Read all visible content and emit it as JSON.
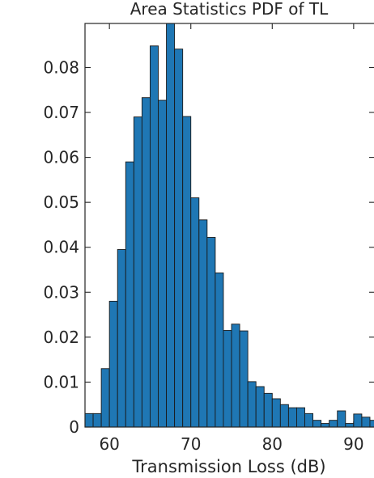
{
  "chart_data": {
    "type": "bar",
    "title": "Area Statistics PDF of TL",
    "xlabel": "Transmission Loss (dB)",
    "ylabel": "",
    "xlim": [
      57,
      92.6
    ],
    "ylim": [
      0,
      0.0898
    ],
    "bin_width": 1,
    "x_ticks": [
      60,
      70,
      80,
      90
    ],
    "x_tick_labels": [
      "60",
      "70",
      "80",
      "90"
    ],
    "y_ticks": [
      0,
      0.01,
      0.02,
      0.03,
      0.04,
      0.05,
      0.06,
      0.07,
      0.08
    ],
    "y_tick_labels": [
      "0",
      "0.01",
      "0.02",
      "0.03",
      "0.04",
      "0.05",
      "0.06",
      "0.07",
      "0.08"
    ],
    "bar_color": "#1f77b4",
    "edge_color": "#1a1a1a",
    "bins": [
      {
        "x": 57.5,
        "value": 0.003
      },
      {
        "x": 58.5,
        "value": 0.003
      },
      {
        "x": 59.5,
        "value": 0.013
      },
      {
        "x": 60.5,
        "value": 0.028
      },
      {
        "x": 61.5,
        "value": 0.0395
      },
      {
        "x": 62.5,
        "value": 0.059
      },
      {
        "x": 63.5,
        "value": 0.069
      },
      {
        "x": 64.5,
        "value": 0.0733
      },
      {
        "x": 65.5,
        "value": 0.0848
      },
      {
        "x": 66.5,
        "value": 0.0727
      },
      {
        "x": 67.5,
        "value": 0.09
      },
      {
        "x": 68.5,
        "value": 0.0841
      },
      {
        "x": 69.5,
        "value": 0.0691
      },
      {
        "x": 70.5,
        "value": 0.051
      },
      {
        "x": 71.5,
        "value": 0.0461
      },
      {
        "x": 72.5,
        "value": 0.0422
      },
      {
        "x": 73.5,
        "value": 0.0343
      },
      {
        "x": 74.5,
        "value": 0.0215
      },
      {
        "x": 75.5,
        "value": 0.0229
      },
      {
        "x": 76.5,
        "value": 0.0214
      },
      {
        "x": 77.5,
        "value": 0.0101
      },
      {
        "x": 78.5,
        "value": 0.009
      },
      {
        "x": 79.5,
        "value": 0.0075
      },
      {
        "x": 80.5,
        "value": 0.0063
      },
      {
        "x": 81.5,
        "value": 0.005
      },
      {
        "x": 82.5,
        "value": 0.0043
      },
      {
        "x": 83.5,
        "value": 0.0043
      },
      {
        "x": 84.5,
        "value": 0.003
      },
      {
        "x": 85.5,
        "value": 0.0015
      },
      {
        "x": 86.5,
        "value": 0.0008
      },
      {
        "x": 87.5,
        "value": 0.0015
      },
      {
        "x": 88.5,
        "value": 0.0036
      },
      {
        "x": 89.5,
        "value": 0.0008
      },
      {
        "x": 90.5,
        "value": 0.0029
      },
      {
        "x": 91.5,
        "value": 0.0022
      },
      {
        "x": 92.5,
        "value": 0.0015
      }
    ]
  }
}
